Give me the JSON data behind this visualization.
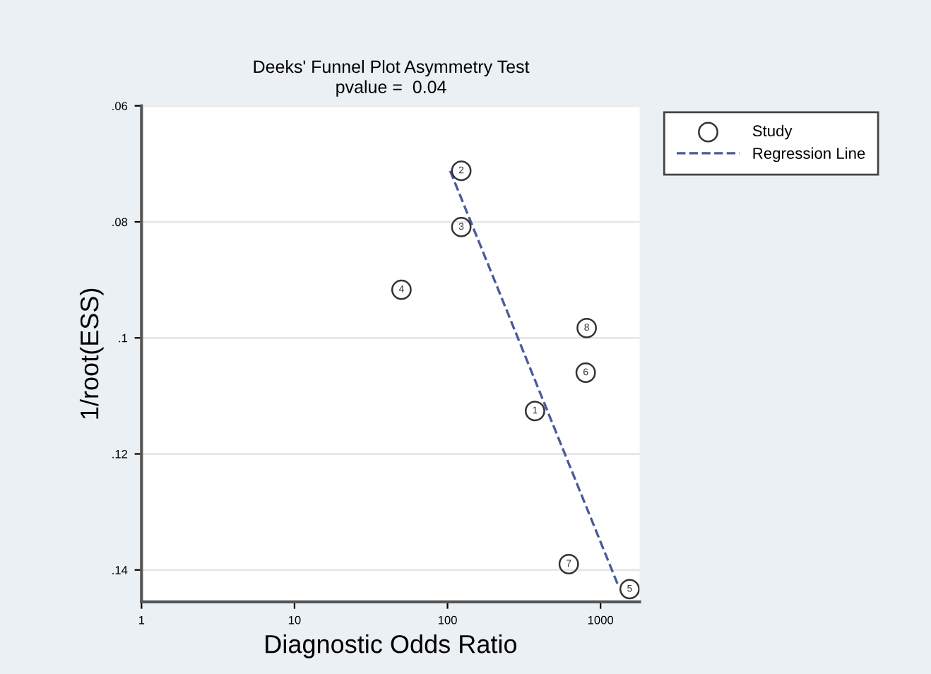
{
  "chart_data": {
    "type": "scatter",
    "title": "Deeks' Funnel Plot Asymmetry Test",
    "subtitle": "pvalue =  0.04",
    "xlabel": "Diagnostic Odds Ratio",
    "ylabel": "1/root(ESS)",
    "series": [
      {
        "name": "Study",
        "color": "#333333",
        "marker": "circle",
        "x": [
          373,
          123,
          123,
          50,
          1550,
          800,
          620,
          812
        ],
        "values": [
          0.1126,
          0.0712,
          0.0809,
          0.0917,
          0.1433,
          0.106,
          0.139,
          0.0983
        ]
      },
      {
        "name": "Regression Line",
        "type": "line",
        "color": "#4a5a9a",
        "line_style": "dashed",
        "marker": "none",
        "x": [
          104,
          1310
        ],
        "values": [
          0.0712,
          0.1428
        ]
      }
    ],
    "annotations": [
      {
        "text": "1",
        "x": 373,
        "y": 0.1126
      },
      {
        "text": "2",
        "x": 123,
        "y": 0.0712
      },
      {
        "text": "3",
        "x": 123,
        "y": 0.0809
      },
      {
        "text": "4",
        "x": 50,
        "y": 0.0917
      },
      {
        "text": "5",
        "x": 1550,
        "y": 0.1433
      },
      {
        "text": "6",
        "x": 800,
        "y": 0.106
      },
      {
        "text": "7",
        "x": 620,
        "y": 0.139
      },
      {
        "text": "8",
        "x": 812,
        "y": 0.0983
      }
    ],
    "log": "x",
    "xlim": [
      1,
      1800
    ],
    "xticks": [
      1,
      10,
      100,
      1000
    ],
    "ylim": [
      0.1455,
      0.06
    ],
    "yticks": [
      {
        "value": 0.06,
        "label": ".06"
      },
      {
        "value": 0.08,
        "label": ".08"
      },
      {
        "value": 0.1,
        "label": ".1"
      },
      {
        "value": 0.12,
        "label": ".12"
      },
      {
        "value": 0.14,
        "label": ".14"
      }
    ],
    "grid": "y",
    "legend": "top right"
  }
}
